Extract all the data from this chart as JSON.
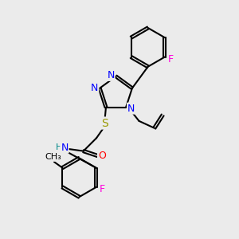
{
  "bg_color": "#ebebeb",
  "bond_color": "#000000",
  "bond_width": 1.5,
  "atom_colors": {
    "N": "#0000ff",
    "O": "#ff0000",
    "S": "#999900",
    "F": "#ff00dd",
    "H": "#008888",
    "C": "#000000"
  },
  "font_size": 9
}
